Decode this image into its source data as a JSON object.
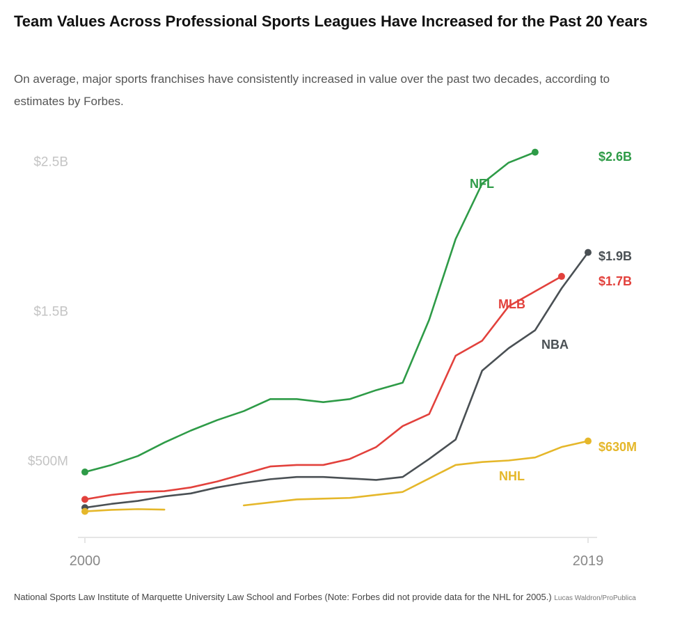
{
  "header": {
    "title": "Team Values Across Professional Sports Leagues Have Increased for the Past 20 Years",
    "subtitle": "On average, major sports franchises have consistently increased in value over the past two decades, according to estimates by Forbes."
  },
  "footer": {
    "source": "National Sports Law Institute of Marquette University Law School and Forbes (Note: Forbes did not provide data for the NHL for 2005.)",
    "credit": "Lucas Waldron/ProPublica"
  },
  "colors": {
    "NFL": "#2e9b47",
    "MLB": "#e2413c",
    "NBA": "#4a5054",
    "NHL": "#e5b72a",
    "axis": "#e5e5e5"
  },
  "chart_data": {
    "type": "line",
    "title": "Team Values Across Professional Sports Leagues Have Increased for the Past 20 Years",
    "xlabel": "",
    "ylabel": "",
    "x": [
      2000,
      2001,
      2002,
      2003,
      2004,
      2005,
      2006,
      2007,
      2008,
      2009,
      2010,
      2011,
      2012,
      2013,
      2014,
      2015,
      2016,
      2017,
      2018,
      2019
    ],
    "x_tick_labels": [
      "2000",
      "2019"
    ],
    "y_ticks": [
      {
        "value": 500000000,
        "label": "$500M"
      },
      {
        "value": 1500000000,
        "label": "$1.5B"
      },
      {
        "value": 2500000000,
        "label": "$2.5B"
      }
    ],
    "ylim": [
      0,
      2600000000
    ],
    "grid": false,
    "series": [
      {
        "name": "NFL",
        "label": "NFL",
        "end_label": "$2.6B",
        "values": [
          423000000,
          470000000,
          530000000,
          620000000,
          700000000,
          770000000,
          830000000,
          910000000,
          910000000,
          890000000,
          910000000,
          970000000,
          1020000000,
          1440000000,
          1980000000,
          2350000000,
          2490000000,
          2560000000,
          null,
          null
        ]
      },
      {
        "name": "MLB",
        "label": "MLB",
        "end_label": "$1.7B",
        "values": [
          240000000,
          270000000,
          290000000,
          295000000,
          320000000,
          360000000,
          410000000,
          460000000,
          470000000,
          470000000,
          510000000,
          590000000,
          730000000,
          810000000,
          1200000000,
          1300000000,
          1530000000,
          1630000000,
          1730000000,
          null
        ]
      },
      {
        "name": "NBA",
        "label": "NBA",
        "end_label": "$1.9B",
        "values": [
          185000000,
          210000000,
          230000000,
          260000000,
          280000000,
          320000000,
          350000000,
          375000000,
          390000000,
          390000000,
          380000000,
          370000000,
          390000000,
          510000000,
          640000000,
          1100000000,
          1250000000,
          1370000000,
          1650000000,
          1890000000
        ]
      },
      {
        "name": "NHL",
        "label": "NHL",
        "end_label": "$630M",
        "values": [
          160000000,
          170000000,
          175000000,
          172000000,
          null,
          null,
          200000000,
          220000000,
          240000000,
          245000000,
          250000000,
          270000000,
          290000000,
          380000000,
          470000000,
          490000000,
          500000000,
          520000000,
          590000000,
          630000000
        ]
      }
    ]
  }
}
